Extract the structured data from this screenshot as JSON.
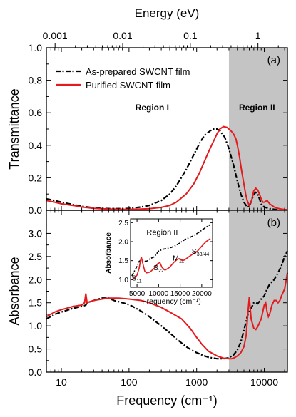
{
  "chart_data": [
    {
      "type": "line",
      "panel": "(a)",
      "ylabel": "Transmittance",
      "xlabel_top": "Energy (eV)",
      "x_scale": "log",
      "xlim": [
        6,
        22000
      ],
      "ylim": [
        0,
        1.0
      ],
      "x_ticks": [
        10,
        100,
        1000,
        10000
      ],
      "y_ticks": [
        0.0,
        0.2,
        0.4,
        0.6,
        0.8,
        1.0
      ],
      "y_tick_labels": [
        "0.0",
        "0.2",
        "0.4",
        "0.6",
        "0.8",
        "1.0"
      ],
      "top_axis_ticks": [
        {
          "energy_eV": 0.001,
          "label": "0.001"
        },
        {
          "energy_eV": 0.01,
          "label": "0.01"
        },
        {
          "energy_eV": 0.1,
          "label": "0.1"
        },
        {
          "energy_eV": 1,
          "label": "1"
        }
      ],
      "shaded_region": {
        "x_start": 3000,
        "x_end": 22000,
        "color": "#c4c4c4"
      },
      "annotations": [
        {
          "text": "Region I",
          "x": 220,
          "y": 0.615
        },
        {
          "text": "Region II",
          "x": 7800,
          "y": 0.615
        }
      ],
      "legend": {
        "placement": "top-left",
        "entries": [
          "As-prepared SWCNT film",
          "Purified SWCNT film"
        ]
      },
      "series": [
        {
          "name": "As-prepared SWCNT film",
          "style": "dash-dot",
          "color": "#000000",
          "x": [
            6,
            8,
            10,
            15,
            20,
            30,
            50,
            80,
            100,
            150,
            200,
            300,
            400,
            500,
            700,
            900,
            1100,
            1300,
            1600,
            1800,
            2000,
            2200,
            2600,
            3000,
            3500,
            4000,
            4500,
            5000,
            5600,
            6000,
            6500,
            7000,
            7500,
            8000,
            8500,
            9000,
            10000,
            12000,
            14000,
            16000,
            18000,
            20000,
            22000
          ],
          "y": [
            0.07,
            0.06,
            0.05,
            0.035,
            0.025,
            0.015,
            0.01,
            0.01,
            0.012,
            0.02,
            0.03,
            0.06,
            0.1,
            0.15,
            0.25,
            0.34,
            0.41,
            0.46,
            0.49,
            0.5,
            0.5,
            0.49,
            0.45,
            0.38,
            0.28,
            0.18,
            0.1,
            0.05,
            0.02,
            0.025,
            0.06,
            0.1,
            0.11,
            0.1,
            0.07,
            0.04,
            0.02,
            0.01,
            0.006,
            0.004,
            0.003,
            0.002,
            0.002
          ]
        },
        {
          "name": "Purified SWCNT film",
          "style": "solid",
          "color": "#e41a1c",
          "x": [
            6,
            8,
            10,
            15,
            20,
            30,
            50,
            80,
            100,
            150,
            200,
            300,
            400,
            500,
            700,
            900,
            1100,
            1300,
            1500,
            1800,
            2000,
            2200,
            2500,
            2800,
            3000,
            3200,
            3500,
            3800,
            4000,
            4300,
            4600,
            5000,
            5300,
            5600,
            6000,
            6500,
            7000,
            7500,
            8000,
            8500,
            9000,
            9500,
            10000,
            11000,
            12000,
            14000,
            16000,
            18000,
            20000,
            22000
          ],
          "y": [
            0.06,
            0.05,
            0.04,
            0.03,
            0.02,
            0.012,
            0.008,
            0.006,
            0.006,
            0.008,
            0.01,
            0.018,
            0.03,
            0.05,
            0.1,
            0.16,
            0.23,
            0.3,
            0.36,
            0.43,
            0.47,
            0.5,
            0.515,
            0.51,
            0.5,
            0.49,
            0.47,
            0.44,
            0.4,
            0.33,
            0.25,
            0.16,
            0.1,
            0.06,
            0.03,
            0.06,
            0.12,
            0.135,
            0.125,
            0.1,
            0.07,
            0.05,
            0.05,
            0.06,
            0.04,
            0.02,
            0.012,
            0.007,
            0.005,
            0.004
          ]
        }
      ]
    },
    {
      "type": "line",
      "panel": "(b)",
      "ylabel": "Absorbance",
      "xlabel": "Frequency (cm⁻¹)",
      "x_scale": "log",
      "xlim": [
        6,
        22000
      ],
      "ylim": [
        0,
        3.5
      ],
      "x_ticks": [
        10,
        100,
        1000,
        10000
      ],
      "x_tick_labels": [
        "10",
        "100",
        "1000",
        "10000"
      ],
      "y_ticks": [
        0.0,
        0.5,
        1.0,
        1.5,
        2.0,
        2.5,
        3.0
      ],
      "y_tick_labels": [
        "0.0",
        "0.5",
        "1.0",
        "1.5",
        "2.0",
        "2.5",
        "3.0"
      ],
      "shaded_region": {
        "x_start": 3000,
        "x_end": 22000,
        "color": "#c4c4c4"
      },
      "series": [
        {
          "name": "As-prepared SWCNT film",
          "style": "dash-dot",
          "color": "#000000",
          "x": [
            6,
            8,
            10,
            15,
            20,
            23,
            24,
            30,
            40,
            50,
            60,
            80,
            100,
            120,
            150,
            200,
            300,
            400,
            500,
            700,
            900,
            1200,
            1500,
            2000,
            2500,
            3000,
            3500,
            4000,
            4500,
            5000,
            5500,
            6000,
            6500,
            7000,
            7500,
            8000,
            9000,
            10000,
            11000,
            12000,
            13000,
            14000,
            16000,
            18000,
            20000,
            22000
          ],
          "y": [
            1.15,
            1.25,
            1.3,
            1.38,
            1.42,
            1.45,
            1.5,
            1.55,
            1.6,
            1.6,
            1.55,
            1.5,
            1.46,
            1.4,
            1.32,
            1.2,
            1.0,
            0.85,
            0.72,
            0.55,
            0.45,
            0.37,
            0.32,
            0.29,
            0.29,
            0.31,
            0.37,
            0.48,
            0.65,
            0.9,
            1.15,
            1.35,
            1.4,
            1.5,
            1.5,
            1.48,
            1.58,
            1.65,
            1.8,
            1.9,
            1.95,
            2.0,
            2.15,
            2.3,
            2.5,
            2.62
          ]
        },
        {
          "name": "Purified SWCNT film",
          "style": "solid",
          "color": "#e41a1c",
          "x": [
            6,
            8,
            10,
            15,
            20,
            22,
            23,
            24,
            26,
            30,
            40,
            50,
            70,
            100,
            150,
            200,
            300,
            400,
            600,
            800,
            1000,
            1200,
            1500,
            2000,
            2500,
            3000,
            3300,
            3600,
            4000,
            4500,
            5000,
            5400,
            5700,
            6000,
            6400,
            7000,
            7500,
            8000,
            9000,
            10000,
            10500,
            11000,
            11500,
            12000,
            13000,
            14000,
            15000,
            16000,
            17000,
            18000,
            20000,
            22000
          ],
          "y": [
            1.2,
            1.3,
            1.35,
            1.42,
            1.45,
            1.5,
            1.7,
            1.5,
            1.52,
            1.55,
            1.58,
            1.6,
            1.6,
            1.58,
            1.55,
            1.5,
            1.4,
            1.3,
            1.15,
            0.95,
            0.75,
            0.6,
            0.45,
            0.35,
            0.3,
            0.29,
            0.29,
            0.31,
            0.35,
            0.42,
            0.55,
            0.8,
            1.25,
            1.62,
            1.15,
            0.95,
            0.92,
            0.98,
            1.15,
            1.45,
            1.5,
            1.3,
            1.2,
            1.25,
            1.45,
            1.55,
            1.55,
            1.5,
            1.55,
            1.65,
            1.8,
            2.15
          ]
        }
      ]
    },
    {
      "type": "line",
      "panel": "inset",
      "title": "Region II",
      "xlabel": "Frequency (cm⁻¹)",
      "ylabel": "Absorbance",
      "xlim": [
        3500,
        22500
      ],
      "ylim": [
        0.8,
        2.6
      ],
      "x_ticks": [
        5000,
        10000,
        15000,
        20000
      ],
      "x_tick_labels": [
        "5000",
        "10000",
        "15000",
        "20000"
      ],
      "y_ticks": [
        1.0,
        1.5,
        2.0,
        2.5
      ],
      "y_tick_labels": [
        "1.0",
        "1.5",
        "2.0",
        "2.5"
      ],
      "annotations": [
        {
          "text": "S",
          "sub": "11",
          "x": 4900,
          "y": 0.98
        },
        {
          "text": "S",
          "sub": "22",
          "x": 10000,
          "y": 1.25
        },
        {
          "text": "M",
          "sub": "11",
          "x": 14600,
          "y": 1.5
        },
        {
          "text": "S",
          "sub": "33/44",
          "x": 19700,
          "y": 1.68
        }
      ],
      "series": [
        {
          "name": "As-prepared SWCNT film",
          "style": "dash-dot",
          "color": "#000000",
          "x": [
            3800,
            4500,
            5000,
            5500,
            6000,
            6500,
            7000,
            7500,
            8000,
            9000,
            10000,
            11000,
            12000,
            13000,
            14000,
            15000,
            16000,
            17000,
            18000,
            19000,
            20000,
            21000,
            22000
          ],
          "y": [
            1.1,
            1.25,
            1.35,
            1.48,
            1.52,
            1.5,
            1.48,
            1.5,
            1.55,
            1.6,
            1.75,
            1.8,
            1.82,
            1.85,
            1.9,
            1.97,
            2.05,
            2.1,
            2.15,
            2.22,
            2.3,
            2.38,
            2.45
          ]
        },
        {
          "name": "Purified SWCNT film",
          "style": "solid",
          "color": "#e41a1c",
          "x": [
            3800,
            4500,
            5000,
            5500,
            5800,
            6000,
            6300,
            6800,
            7200,
            8000,
            9000,
            9800,
            10300,
            10800,
            11500,
            12500,
            13500,
            14500,
            15000,
            15500,
            16000,
            17000,
            18000,
            19000,
            20000,
            21000,
            22000
          ],
          "y": [
            1.0,
            1.05,
            1.12,
            1.3,
            1.5,
            1.6,
            1.45,
            1.22,
            1.18,
            1.2,
            1.3,
            1.42,
            1.45,
            1.32,
            1.25,
            1.32,
            1.45,
            1.55,
            1.55,
            1.5,
            1.52,
            1.6,
            1.68,
            1.75,
            1.88,
            2.0,
            2.08
          ]
        }
      ]
    }
  ]
}
